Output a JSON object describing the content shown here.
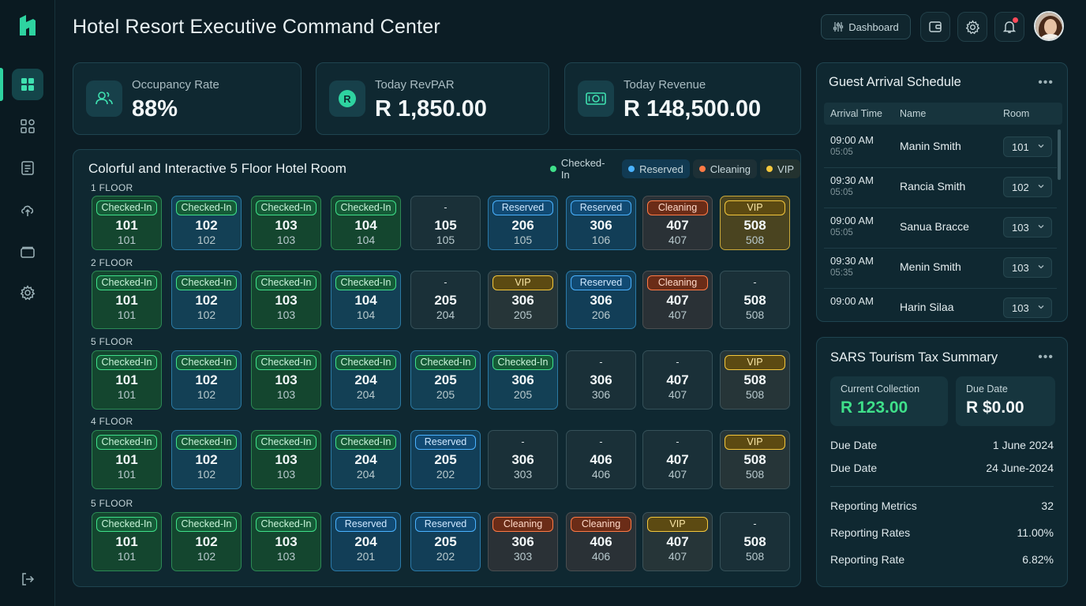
{
  "header": {
    "title": "Hotel Resort Executive Command Center",
    "dashboard_label": "Dashboard"
  },
  "sidebar": {
    "items": [
      {
        "icon": "dashboard-grid-icon",
        "active": true
      },
      {
        "icon": "modules-icon"
      },
      {
        "icon": "clipboard-icon"
      },
      {
        "icon": "cloud-upload-icon"
      },
      {
        "icon": "folder-icon"
      },
      {
        "icon": "gear-icon"
      }
    ],
    "logout_icon": "logout-icon"
  },
  "kpis": [
    {
      "label": "Occupancy Rate",
      "value": "88%",
      "icon": "users-icon"
    },
    {
      "label": "Today RevPAR",
      "value": "R 1,850.00",
      "icon": "rand-coin-icon"
    },
    {
      "label": "Today Revenue",
      "value": "R 148,500.00",
      "icon": "banknote-icon"
    }
  ],
  "room_grid": {
    "title": "Colorful and Interactive 5 Floor Hotel Room",
    "legend": [
      {
        "label": "Checked-In",
        "color": "#3fe08a"
      },
      {
        "label": "Reserved",
        "color": "#4ab2ff"
      },
      {
        "label": "Cleaning",
        "color": "#ff7a45"
      },
      {
        "label": "VIP",
        "color": "#f4c73c"
      }
    ],
    "floors": [
      {
        "label": "1 FLOOR",
        "rooms": [
          {
            "status": "Checked-In",
            "style": "checked",
            "num": "101",
            "sub": "101"
          },
          {
            "status": "Checked-In",
            "style": "checked-b",
            "num": "102",
            "sub": "102"
          },
          {
            "status": "Checked-In",
            "style": "checked",
            "num": "103",
            "sub": "103"
          },
          {
            "status": "Checked-In",
            "style": "checked",
            "num": "104",
            "sub": "104"
          },
          {
            "status": "-",
            "style": "empty",
            "num": "105",
            "sub": "105"
          },
          {
            "status": "Reserved",
            "style": "reserved",
            "num": "206",
            "sub": "105"
          },
          {
            "status": "Reserved",
            "style": "reserved",
            "num": "306",
            "sub": "106"
          },
          {
            "status": "Cleaning",
            "style": "cleaning",
            "num": "407",
            "sub": "407"
          },
          {
            "status": "VIP",
            "style": "vip",
            "num": "508",
            "sub": "508"
          }
        ]
      },
      {
        "label": "2 FLOOR",
        "rooms": [
          {
            "status": "Checked-In",
            "style": "checked",
            "num": "101",
            "sub": "101"
          },
          {
            "status": "Checked-In",
            "style": "checked-b",
            "num": "102",
            "sub": "102"
          },
          {
            "status": "Checked-In",
            "style": "checked",
            "num": "103",
            "sub": "103"
          },
          {
            "status": "Checked-In",
            "style": "checked-b",
            "num": "104",
            "sub": "104"
          },
          {
            "status": "-",
            "style": "empty",
            "num": "205",
            "sub": "204"
          },
          {
            "status": "VIP",
            "style": "vip-dim",
            "num": "306",
            "sub": "205"
          },
          {
            "status": "Reserved",
            "style": "reserved",
            "num": "306",
            "sub": "206"
          },
          {
            "status": "Cleaning",
            "style": "cleaning",
            "num": "407",
            "sub": "407"
          },
          {
            "status": "-",
            "style": "empty",
            "num": "508",
            "sub": "508"
          }
        ]
      },
      {
        "label": "5 FLOOR",
        "rooms": [
          {
            "status": "Checked-In",
            "style": "checked",
            "num": "101",
            "sub": "101"
          },
          {
            "status": "Checked-In",
            "style": "checked-b",
            "num": "102",
            "sub": "102"
          },
          {
            "status": "Checked-In",
            "style": "checked",
            "num": "103",
            "sub": "103"
          },
          {
            "status": "Checked-In",
            "style": "checked-b",
            "num": "204",
            "sub": "204"
          },
          {
            "status": "Checked-In",
            "style": "checked-b",
            "num": "205",
            "sub": "205"
          },
          {
            "status": "Checked-In",
            "style": "checked-b",
            "num": "306",
            "sub": "205"
          },
          {
            "status": "-",
            "style": "empty",
            "num": "306",
            "sub": "306"
          },
          {
            "status": "-",
            "style": "empty",
            "num": "407",
            "sub": "407"
          },
          {
            "status": "VIP",
            "style": "vip-dim",
            "num": "508",
            "sub": "508"
          }
        ]
      },
      {
        "label": "4 FLOOR",
        "rooms": [
          {
            "status": "Checked-In",
            "style": "checked",
            "num": "101",
            "sub": "101"
          },
          {
            "status": "Checked-In",
            "style": "checked-b",
            "num": "102",
            "sub": "102"
          },
          {
            "status": "Checked-In",
            "style": "checked",
            "num": "103",
            "sub": "103"
          },
          {
            "status": "Checked-In",
            "style": "checked-b",
            "num": "204",
            "sub": "204"
          },
          {
            "status": "Reserved",
            "style": "reserved",
            "num": "205",
            "sub": "202"
          },
          {
            "status": "-",
            "style": "empty",
            "num": "306",
            "sub": "303"
          },
          {
            "status": "-",
            "style": "empty",
            "num": "406",
            "sub": "406"
          },
          {
            "status": "-",
            "style": "empty",
            "num": "407",
            "sub": "407"
          },
          {
            "status": "VIP",
            "style": "vip-dim",
            "num": "508",
            "sub": "508"
          }
        ]
      },
      {
        "label": "5 FLOOR",
        "rooms": [
          {
            "status": "Checked-In",
            "style": "checked",
            "num": "101",
            "sub": "101"
          },
          {
            "status": "Checked-In",
            "style": "checked",
            "num": "102",
            "sub": "102"
          },
          {
            "status": "Checked-In",
            "style": "checked",
            "num": "103",
            "sub": "103"
          },
          {
            "status": "Reserved",
            "style": "reserved",
            "num": "204",
            "sub": "201"
          },
          {
            "status": "Reserved",
            "style": "reserved",
            "num": "205",
            "sub": "202"
          },
          {
            "status": "Cleaning",
            "style": "cleaning",
            "num": "306",
            "sub": "303"
          },
          {
            "status": "Cleaning",
            "style": "cleaning",
            "num": "406",
            "sub": "406"
          },
          {
            "status": "VIP",
            "style": "vip-dim",
            "num": "407",
            "sub": "407"
          },
          {
            "status": "-",
            "style": "empty",
            "num": "508",
            "sub": "508"
          }
        ]
      }
    ]
  },
  "arrivals": {
    "title": "Guest Arrival Schedule",
    "more": "•••",
    "columns": [
      "Arrival Time",
      "Name",
      "Room"
    ],
    "rows": [
      {
        "time": "09:00 AM",
        "sub": "05:05",
        "name": "Manin Smith",
        "room": "101"
      },
      {
        "time": "09:30 AM",
        "sub": "05:05",
        "name": "Rancia Smith",
        "room": "102"
      },
      {
        "time": "09:00 AM",
        "sub": "05:05",
        "name": "Sanua Bracce",
        "room": "103"
      },
      {
        "time": "09:30 AM",
        "sub": "05:35",
        "name": "Menin Smith",
        "room": "103"
      },
      {
        "time": "09:00 AM",
        "sub": "",
        "name": "Harin Silaa",
        "room": "103"
      }
    ]
  },
  "tax": {
    "title": "SARS Tourism Tax Summary",
    "more": "•••",
    "current_label": "Current Collection",
    "current_value": "R 123.00",
    "current_color": "#3fe08a",
    "due_label": "Due Date",
    "due_value": "R $0.00",
    "dates": [
      {
        "label": "Due Date",
        "value": "1 June 2024"
      },
      {
        "label": "Due Date",
        "value": "24 June-2024"
      }
    ],
    "metrics": [
      {
        "label": "Reporting Metrics",
        "value": "32"
      },
      {
        "label": "Reporting Rates",
        "value": "11.00%"
      },
      {
        "label": "Reporting Rate",
        "value": "6.82%"
      }
    ]
  }
}
